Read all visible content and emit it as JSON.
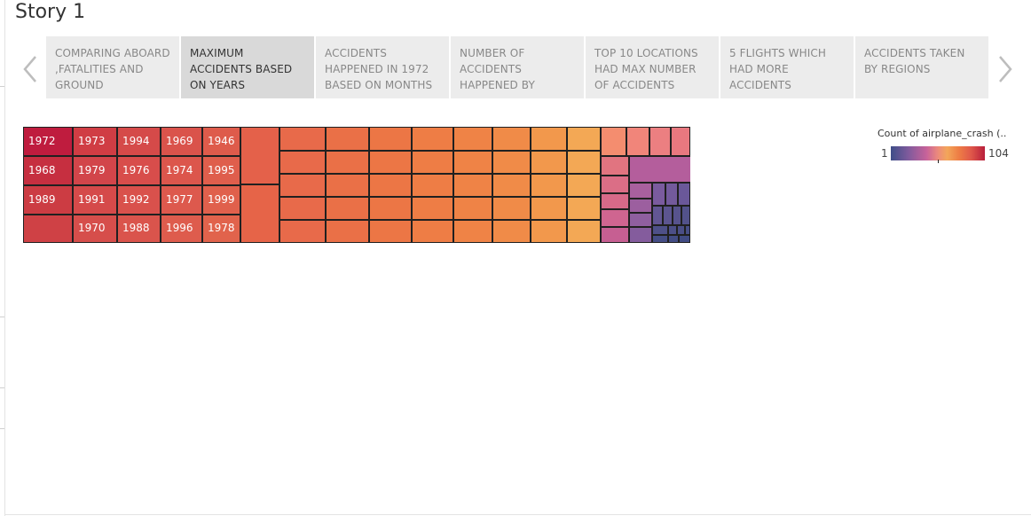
{
  "story": {
    "title": "Story 1"
  },
  "nav": {
    "prev_arrow": "‹",
    "next_arrow": "›"
  },
  "tabs": [
    {
      "label": "COMPARING ABOARD ,FATALITIES AND GROUND",
      "active": false
    },
    {
      "label": "MAXIMUM ACCIDENTS BASED ON YEARS",
      "active": true
    },
    {
      "label": "ACCIDENTS HAPPENED IN 1972 BASED ON MONTHS",
      "active": false
    },
    {
      "label": "NUMBER OF ACCIDENTS HAPPENED BY",
      "active": false
    },
    {
      "label": "TOP 10 LOCATIONS HAD MAX NUMBER OF ACCIDENTS",
      "active": false
    },
    {
      "label": "5 FLIGHTS WHICH HAD MORE ACCIDENTS",
      "active": false
    },
    {
      "label": "ACCIDENTS TAKEN BY REGIONS",
      "active": false
    }
  ],
  "legend": {
    "title": "Count of airplane_crash (..",
    "min": "1",
    "max": "104",
    "colors": [
      "#3e4e88",
      "#c7629a",
      "#f3a65a",
      "#e0594a",
      "#b81f3c"
    ]
  },
  "chart_data": {
    "type": "treemap",
    "measure": "Count of airplane_crash",
    "color_range": [
      1,
      104
    ],
    "labeled_cells": [
      "1972",
      "1968",
      "1989",
      "1973",
      "1979",
      "1991",
      "1970",
      "1994",
      "1976",
      "1992",
      "1988",
      "1969",
      "1974",
      "1977",
      "1996",
      "1946",
      "1995",
      "1999",
      "1978"
    ]
  }
}
